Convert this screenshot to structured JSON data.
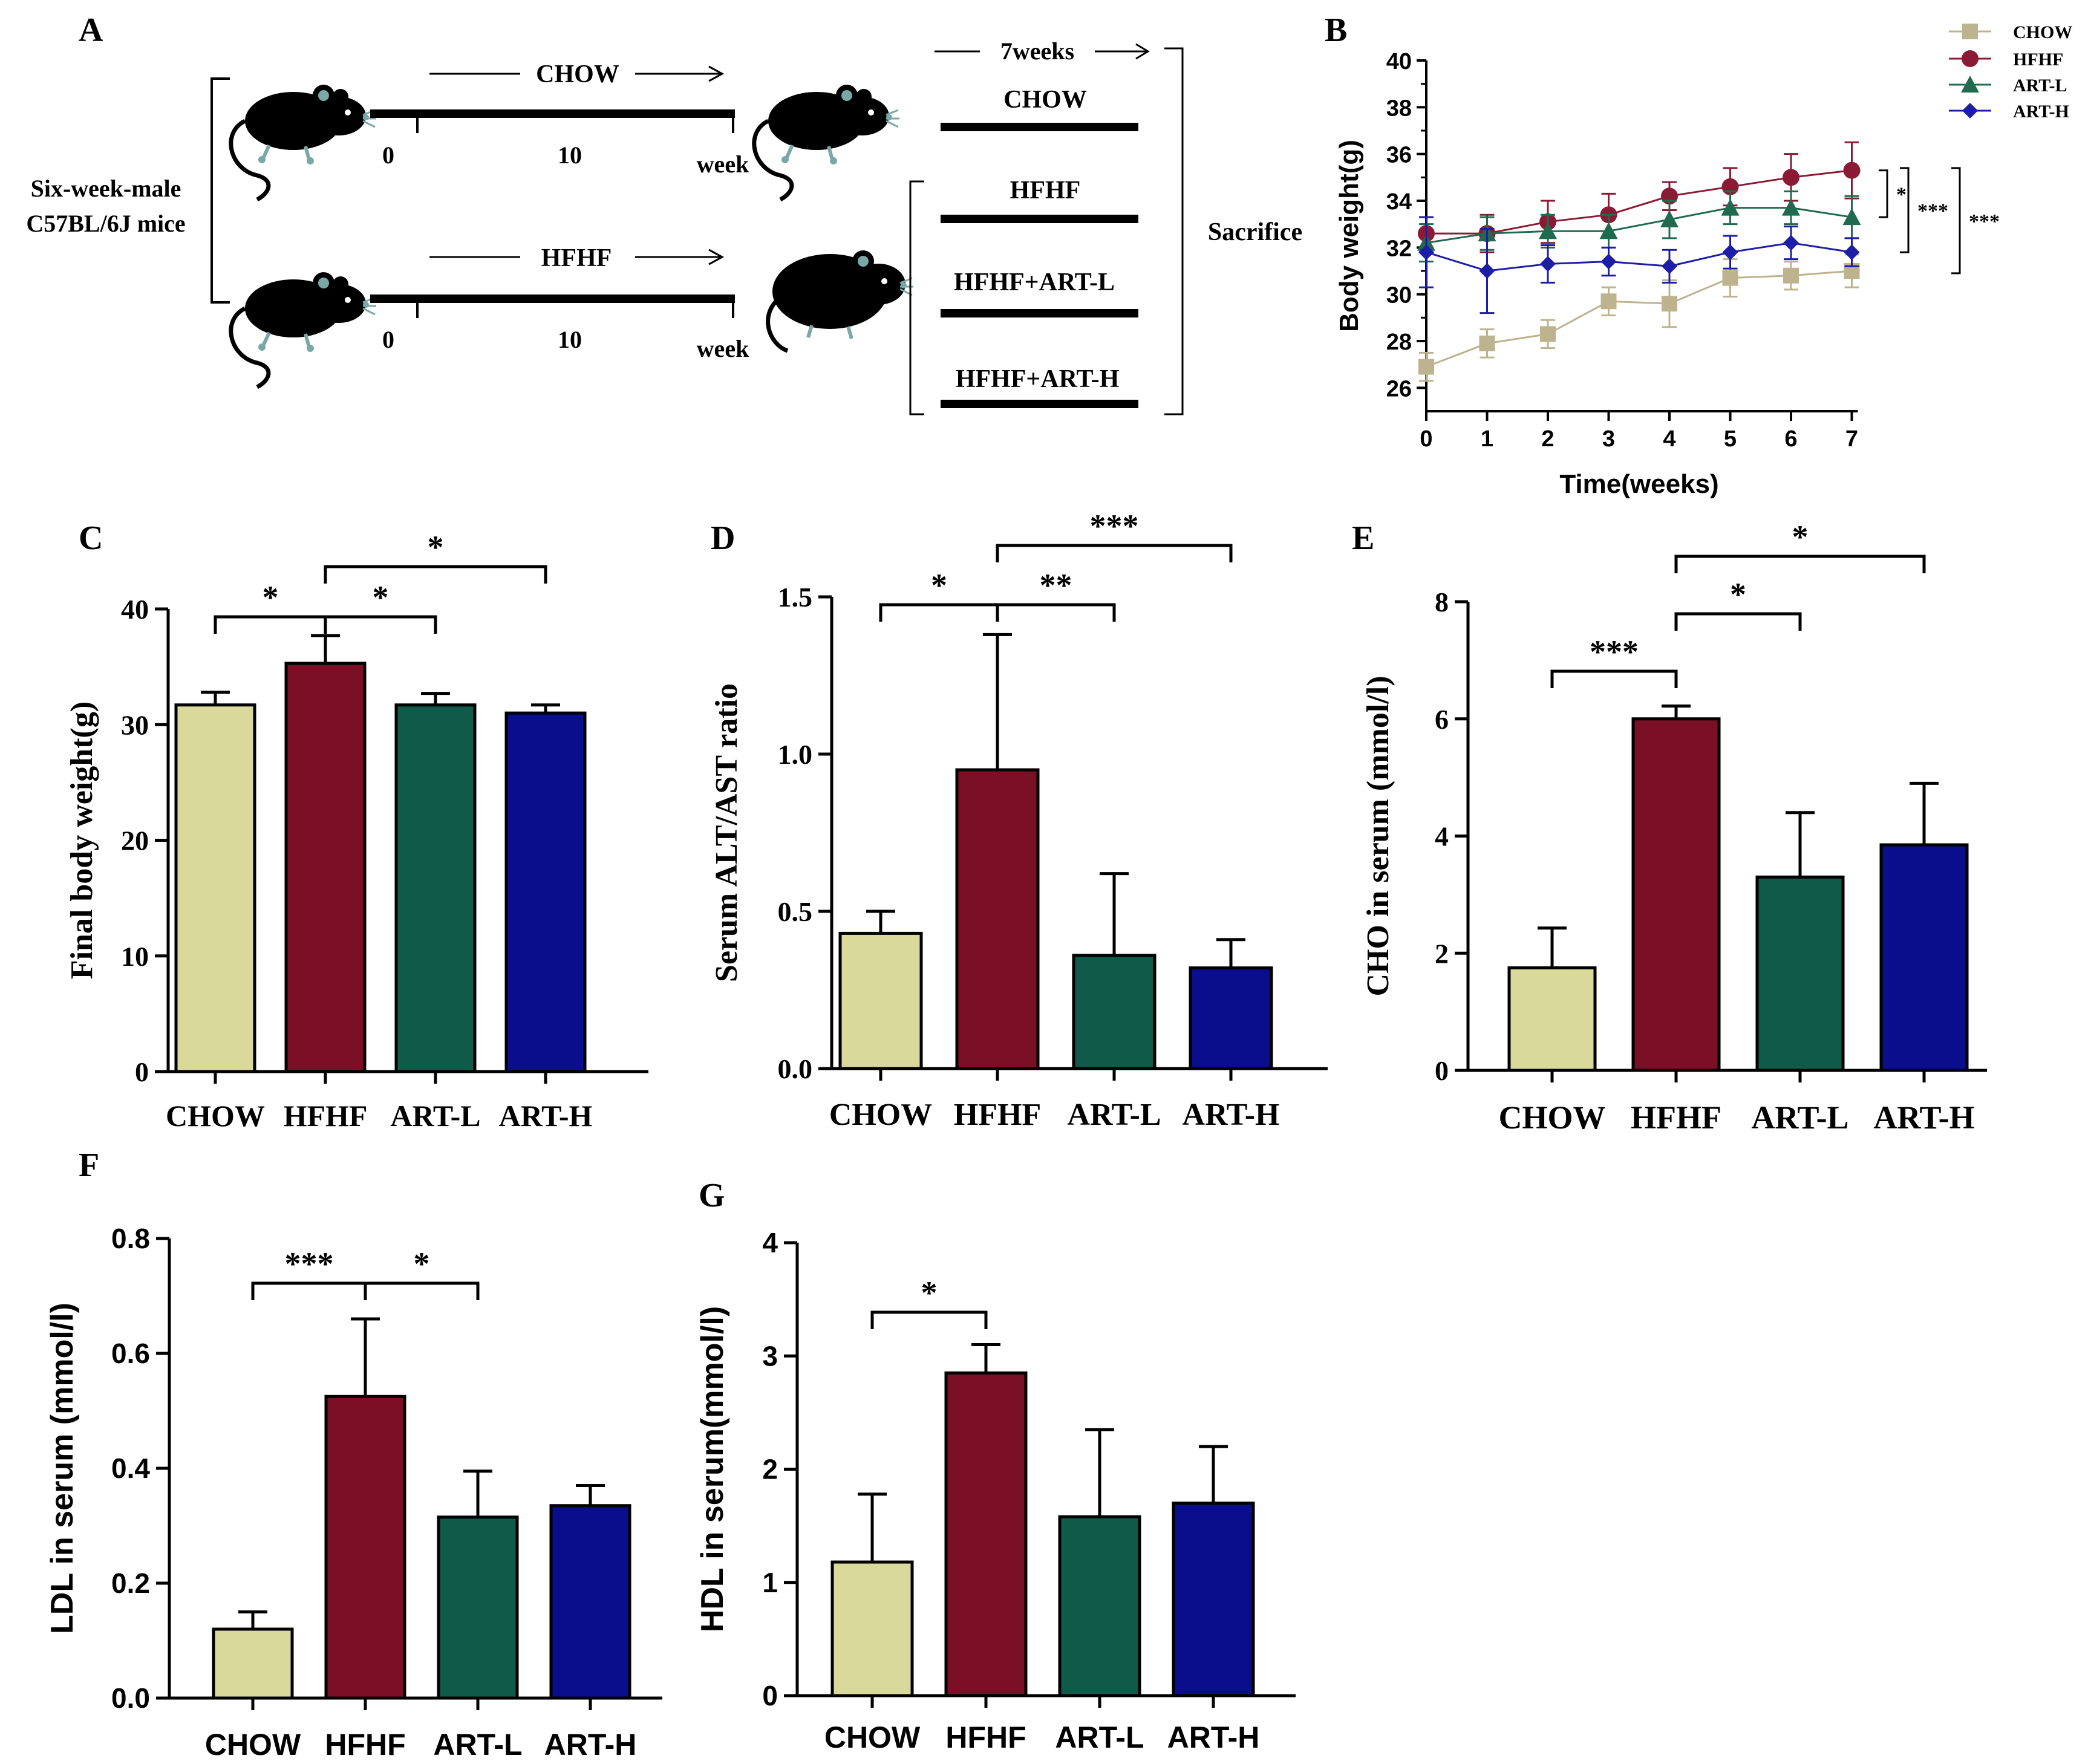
{
  "panel_labels": [
    "A",
    "B",
    "C",
    "D",
    "E",
    "F",
    "G"
  ],
  "schematic": {
    "mouse_label_line1": "Six-week-male",
    "mouse_label_line2": "C57BL/6J mice",
    "top_diet": "CHOW",
    "bottom_diet": "HFHF",
    "tick_start": "0",
    "tick_mid": "10",
    "week_label": "week",
    "treatment_duration": "7weeks",
    "groups": [
      "CHOW",
      "HFHF",
      "HFHF+ART-L",
      "HFHF+ART-H"
    ],
    "endpoint": "Sacrifice"
  },
  "colors": {
    "CHOW": "#d9d99b",
    "HFHF": "#7a0f26",
    "ART-L": "#0f5a48",
    "ART-H": "#0a0e8c",
    "CHOW_line": "#bdb38e",
    "HFHF_line": "#8b1a35",
    "ART-L_line": "#1f6b4f",
    "ART-H_line": "#1d1da8"
  },
  "chart_data": [
    {
      "id": "B",
      "type": "line",
      "xlabel": "Time(weeks)",
      "ylabel": "Body weight(g)",
      "x": [
        0,
        1,
        2,
        3,
        4,
        5,
        6,
        7
      ],
      "xticks": [
        "0",
        "1",
        "2",
        "3",
        "4",
        "5",
        "6",
        "7"
      ],
      "yticks": [
        "26",
        "28",
        "30",
        "32",
        "34",
        "36",
        "38",
        "40"
      ],
      "ylim": [
        25,
        40
      ],
      "legend_position": "top-right",
      "series": [
        {
          "name": "CHOW",
          "marker": "square",
          "values": [
            26.9,
            27.9,
            28.3,
            29.7,
            29.6,
            30.7,
            30.8,
            31.0
          ],
          "err": [
            0.6,
            0.6,
            0.6,
            0.6,
            1.0,
            0.8,
            0.6,
            0.7
          ]
        },
        {
          "name": "HFHF",
          "marker": "circle",
          "values": [
            32.6,
            32.6,
            33.1,
            33.4,
            34.2,
            34.6,
            35.0,
            35.3
          ],
          "err": [
            0.7,
            0.8,
            0.9,
            0.9,
            0.6,
            0.8,
            1.0,
            1.2
          ]
        },
        {
          "name": "ART-L",
          "marker": "triangle",
          "values": [
            32.2,
            32.6,
            32.7,
            32.7,
            33.2,
            33.7,
            33.7,
            33.3
          ],
          "err": [
            0.8,
            0.7,
            0.7,
            0.7,
            0.8,
            0.7,
            0.7,
            0.9
          ]
        },
        {
          "name": "ART-H",
          "marker": "diamond",
          "values": [
            31.8,
            31.0,
            31.3,
            31.4,
            31.2,
            31.8,
            32.2,
            31.8
          ],
          "err": [
            1.5,
            1.8,
            0.8,
            0.6,
            0.7,
            0.7,
            0.7,
            0.6
          ]
        }
      ],
      "significance": [
        "*",
        "***",
        "***"
      ]
    },
    {
      "id": "C",
      "type": "bar",
      "ylabel": "Final body weight(g)",
      "categories": [
        "CHOW",
        "HFHF",
        "ART-L",
        "ART-H"
      ],
      "values": [
        31.7,
        35.3,
        31.7,
        31.0
      ],
      "err": [
        1.1,
        2.4,
        1.0,
        0.7
      ],
      "ylim": [
        0,
        40
      ],
      "yticks": [
        "0",
        "10",
        "20",
        "30",
        "40"
      ],
      "significance": [
        {
          "from": 0,
          "to": 1,
          "label": "*"
        },
        {
          "from": 1,
          "to": 2,
          "label": "*"
        },
        {
          "from": 1,
          "to": 3,
          "label": "*"
        }
      ]
    },
    {
      "id": "D",
      "type": "bar",
      "ylabel": "Serum ALT/AST ratio",
      "categories": [
        "CHOW",
        "HFHF",
        "ART-L",
        "ART-H"
      ],
      "values": [
        0.43,
        0.95,
        0.36,
        0.32
      ],
      "err": [
        0.07,
        0.43,
        0.26,
        0.09
      ],
      "ylim": [
        0,
        1.5
      ],
      "yticks": [
        "0.0",
        "0.5",
        "1.0",
        "1.5"
      ],
      "significance": [
        {
          "from": 0,
          "to": 1,
          "label": "*"
        },
        {
          "from": 1,
          "to": 2,
          "label": "**"
        },
        {
          "from": 1,
          "to": 3,
          "label": "***"
        }
      ]
    },
    {
      "id": "E",
      "type": "bar",
      "ylabel": "CHO in serum (mmol/l)",
      "categories": [
        "CHOW",
        "HFHF",
        "ART-L",
        "ART-H"
      ],
      "values": [
        1.75,
        6.0,
        3.3,
        3.85
      ],
      "err": [
        0.68,
        0.22,
        1.1,
        1.05
      ],
      "ylim": [
        0,
        8
      ],
      "yticks": [
        "0",
        "2",
        "4",
        "6",
        "8"
      ],
      "significance": [
        {
          "from": 0,
          "to": 1,
          "label": "***"
        },
        {
          "from": 1,
          "to": 2,
          "label": "*"
        },
        {
          "from": 1,
          "to": 3,
          "label": "*"
        }
      ]
    },
    {
      "id": "F",
      "type": "bar",
      "ylabel": "LDL in serum (mmol/l)",
      "categories": [
        "CHOW",
        "HFHF",
        "ART-L",
        "ART-H"
      ],
      "values": [
        0.12,
        0.525,
        0.315,
        0.335
      ],
      "err": [
        0.03,
        0.135,
        0.08,
        0.035
      ],
      "ylim": [
        0,
        0.8
      ],
      "yticks": [
        "0.0",
        "0.2",
        "0.4",
        "0.6",
        "0.8"
      ],
      "significance": [
        {
          "from": 0,
          "to": 1,
          "label": "***"
        },
        {
          "from": 1,
          "to": 2,
          "label": "*"
        }
      ]
    },
    {
      "id": "G",
      "type": "bar",
      "ylabel": "HDL in serum(mmol/l)",
      "categories": [
        "CHOW",
        "HFHF",
        "ART-L",
        "ART-H"
      ],
      "values": [
        1.18,
        2.85,
        1.58,
        1.7
      ],
      "err": [
        0.6,
        0.25,
        0.77,
        0.5
      ],
      "ylim": [
        0,
        4
      ],
      "yticks": [
        "0",
        "1",
        "2",
        "3",
        "4"
      ],
      "significance": [
        {
          "from": 0,
          "to": 1,
          "label": "*"
        }
      ]
    }
  ]
}
